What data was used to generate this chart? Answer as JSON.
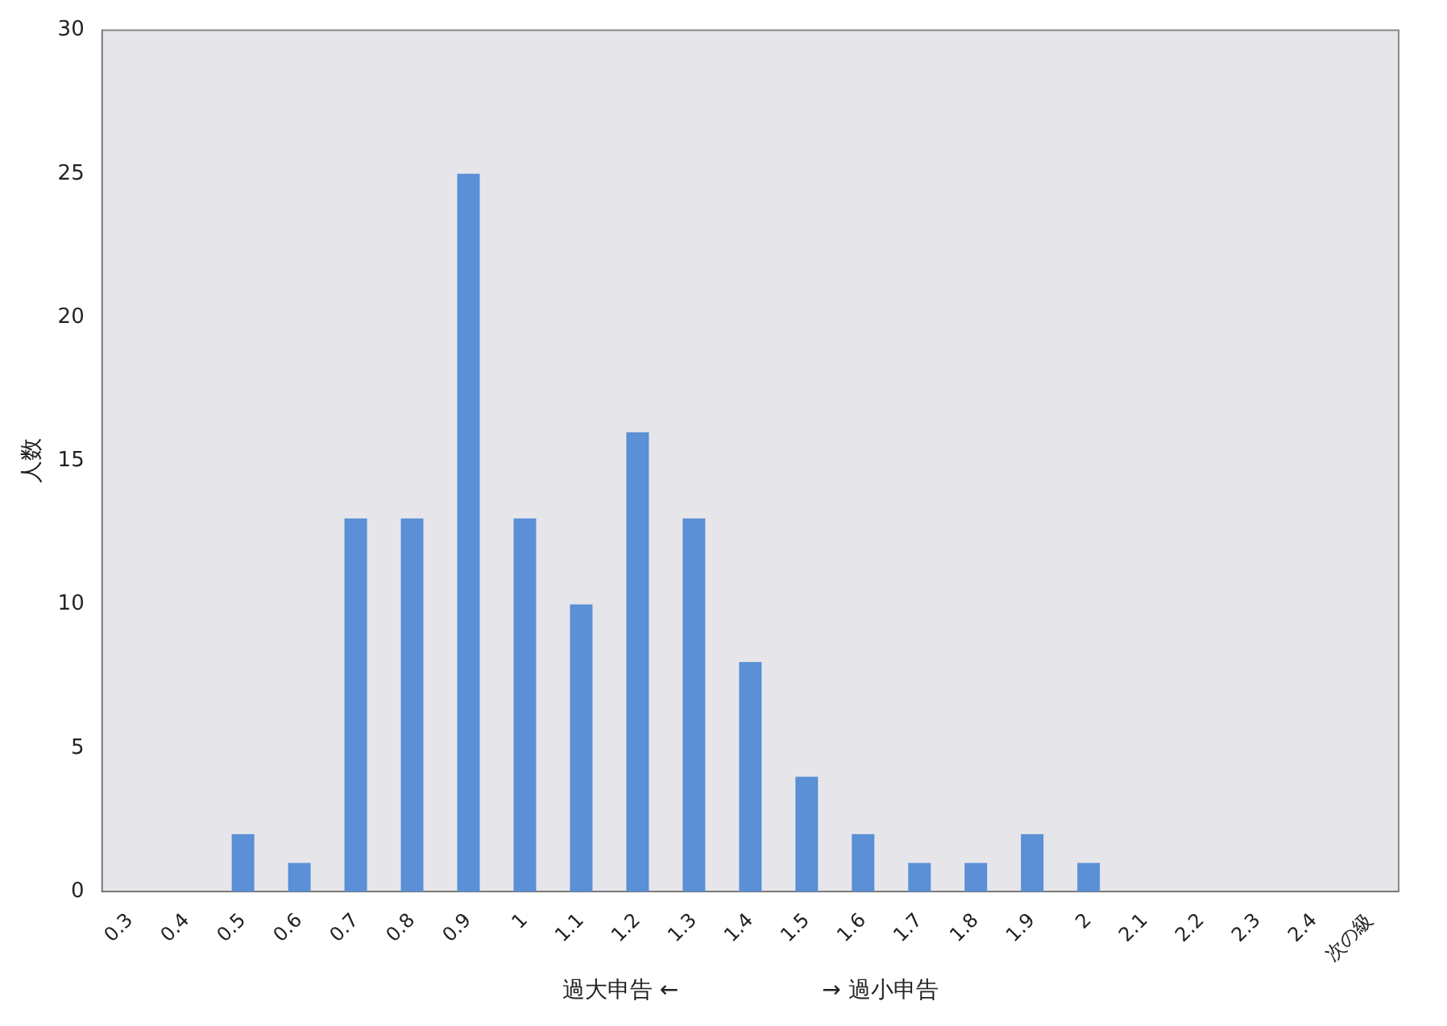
{
  "chart_data": {
    "type": "bar",
    "xlabel": "過大申告 ←                    → 過小申告",
    "ylabel": "人数",
    "categories": [
      "0.3",
      "0.4",
      "0.5",
      "0.6",
      "0.7",
      "0.8",
      "0.9",
      "1",
      "1.1",
      "1.2",
      "1.3",
      "1.4",
      "1.5",
      "1.6",
      "1.7",
      "1.8",
      "1.9",
      "2",
      "2.1",
      "2.2",
      "2.3",
      "2.4",
      "次の級"
    ],
    "values": [
      0,
      0,
      2,
      1,
      13,
      13,
      25,
      13,
      10,
      16,
      13,
      8,
      4,
      2,
      1,
      1,
      2,
      1,
      0,
      0,
      0,
      0,
      0
    ],
    "color": "#5b8fd6",
    "ylim": [
      0,
      30
    ],
    "yticks": [
      0,
      5,
      10,
      15,
      20,
      25,
      30
    ],
    "grid": false,
    "legend": false
  }
}
